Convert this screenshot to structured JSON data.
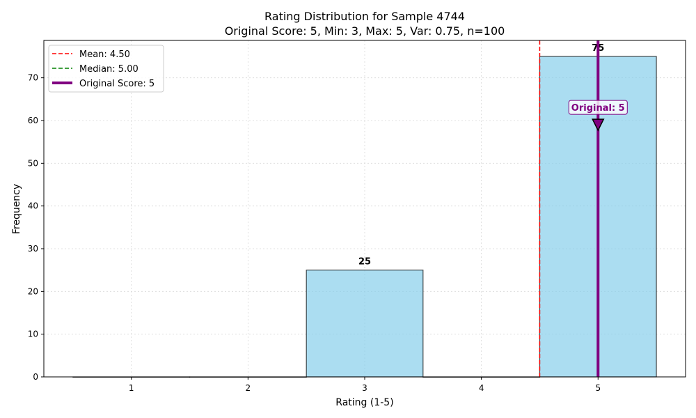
{
  "chart_data": {
    "type": "bar",
    "title": "Rating Distribution for Sample 4744",
    "subtitle": "Original Score: 5, Min: 3, Max: 5, Var: 0.75, n=100",
    "xlabel": "Rating (1-5)",
    "ylabel": "Frequency",
    "categories": [
      "1",
      "2",
      "3",
      "4",
      "5"
    ],
    "x": [
      1,
      2,
      3,
      4,
      5
    ],
    "values": [
      0,
      0,
      25,
      0,
      75
    ],
    "data_labels": [
      "",
      "",
      "25",
      "",
      "75"
    ],
    "xlim": [
      0.25,
      5.75
    ],
    "ylim": [
      0,
      78.75
    ],
    "yticks": [
      0,
      10,
      20,
      30,
      40,
      50,
      60,
      70
    ],
    "grid": true,
    "legend_position": "top-left",
    "bar_color": "#87CEEB",
    "reference_lines": [
      {
        "label": "Mean: 4.50",
        "value": 4.5,
        "color": "#ff0000",
        "style": "dashed"
      },
      {
        "label": "Median: 5.00",
        "value": 5.0,
        "color": "#008000",
        "style": "dashed"
      },
      {
        "label": "Original Score: 5",
        "value": 5,
        "color": "#800080",
        "style": "solid"
      }
    ],
    "annotation": {
      "text": "Original: 5",
      "x": 5,
      "y": 59,
      "color": "#800080"
    }
  }
}
